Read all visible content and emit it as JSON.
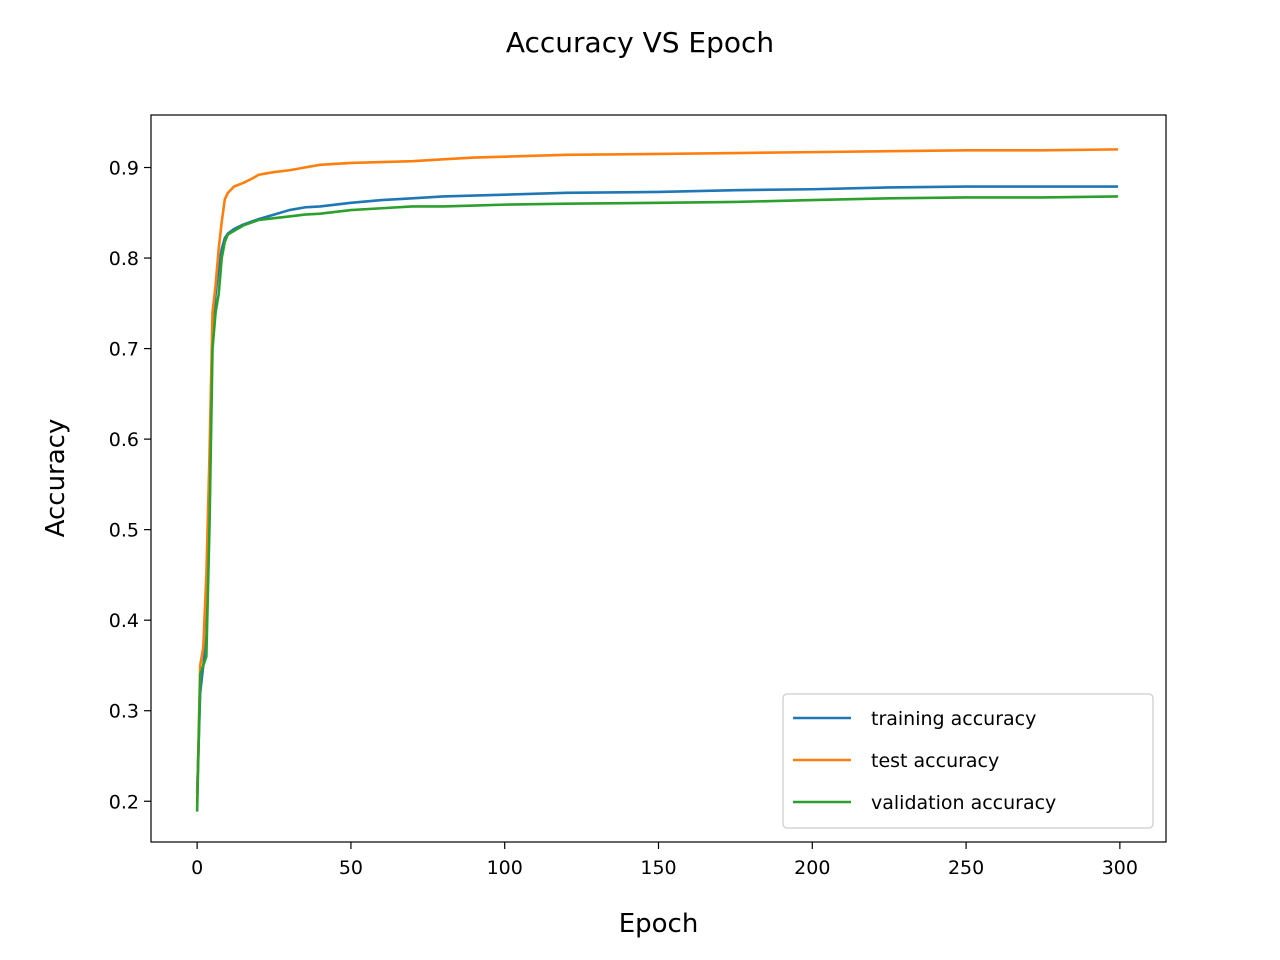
{
  "chart_data": {
    "type": "line",
    "title": "Accuracy VS Epoch",
    "xlabel": "Epoch",
    "ylabel": "Accuracy",
    "xlim": [
      -15,
      315
    ],
    "ylim": [
      0.155,
      0.958
    ],
    "xticks": [
      0,
      50,
      100,
      150,
      200,
      250,
      300
    ],
    "yticks": [
      0.2,
      0.3,
      0.4,
      0.5,
      0.6,
      0.7,
      0.8,
      0.9
    ],
    "grid": false,
    "legend_position": "lower-right",
    "series": [
      {
        "name": "training accuracy",
        "color": "#1f77b4",
        "x": [
          0,
          1,
          2,
          3,
          4,
          5,
          6,
          7,
          8,
          9,
          10,
          12,
          15,
          20,
          25,
          30,
          35,
          40,
          50,
          60,
          70,
          80,
          90,
          100,
          120,
          150,
          175,
          200,
          225,
          250,
          275,
          299
        ],
        "y": [
          0.21,
          0.32,
          0.35,
          0.38,
          0.52,
          0.72,
          0.76,
          0.79,
          0.81,
          0.822,
          0.827,
          0.832,
          0.837,
          0.843,
          0.848,
          0.853,
          0.856,
          0.857,
          0.861,
          0.864,
          0.866,
          0.868,
          0.869,
          0.87,
          0.872,
          0.873,
          0.875,
          0.876,
          0.878,
          0.879,
          0.879,
          0.879
        ]
      },
      {
        "name": "test accuracy",
        "color": "#ff7f0e",
        "x": [
          0,
          1,
          2,
          3,
          4,
          5,
          6,
          7,
          8,
          9,
          10,
          12,
          15,
          18,
          20,
          25,
          30,
          35,
          40,
          50,
          60,
          70,
          80,
          90,
          100,
          120,
          150,
          175,
          200,
          225,
          250,
          275,
          299
        ],
        "y": [
          0.2,
          0.35,
          0.37,
          0.45,
          0.58,
          0.74,
          0.77,
          0.81,
          0.84,
          0.865,
          0.872,
          0.879,
          0.883,
          0.888,
          0.892,
          0.895,
          0.897,
          0.9,
          0.903,
          0.905,
          0.906,
          0.907,
          0.909,
          0.911,
          0.912,
          0.914,
          0.915,
          0.916,
          0.917,
          0.918,
          0.919,
          0.919,
          0.92
        ]
      },
      {
        "name": "validation accuracy",
        "color": "#2ca02c",
        "x": [
          0,
          1,
          2,
          3,
          4,
          5,
          6,
          7,
          8,
          9,
          10,
          12,
          15,
          20,
          25,
          30,
          35,
          40,
          50,
          60,
          70,
          80,
          90,
          100,
          120,
          150,
          175,
          200,
          225,
          250,
          275,
          299
        ],
        "y": [
          0.19,
          0.34,
          0.35,
          0.36,
          0.5,
          0.7,
          0.74,
          0.76,
          0.8,
          0.818,
          0.826,
          0.83,
          0.836,
          0.842,
          0.844,
          0.846,
          0.848,
          0.849,
          0.853,
          0.855,
          0.857,
          0.857,
          0.858,
          0.859,
          0.86,
          0.861,
          0.862,
          0.864,
          0.866,
          0.867,
          0.867,
          0.868
        ]
      }
    ]
  }
}
